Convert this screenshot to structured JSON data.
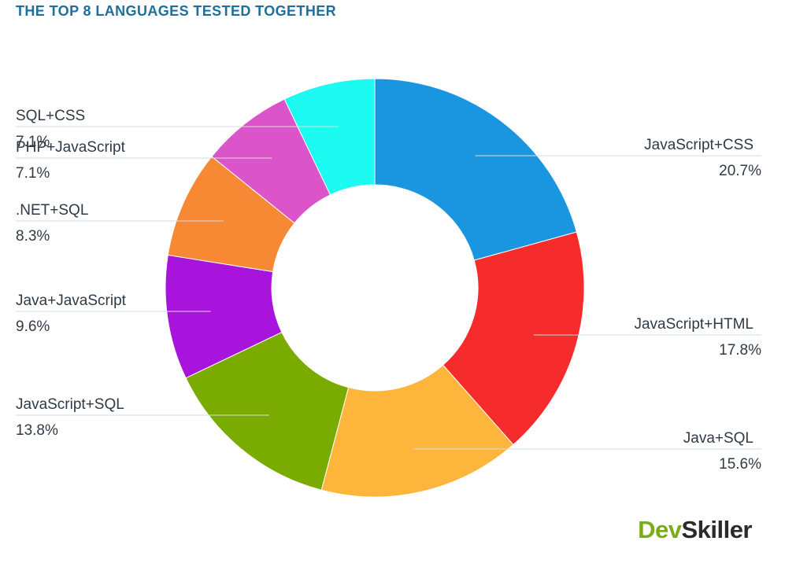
{
  "chart_data": {
    "type": "pie",
    "title": "THE TOP 8 LANGUAGES TESTED TOGETHER",
    "unit": "%",
    "slices": [
      {
        "label": "JavaScript+CSS",
        "value": 20.7,
        "value_label": "20.7%",
        "color": "#1a96e0"
      },
      {
        "label": "JavaScript+HTML",
        "value": 17.8,
        "value_label": "17.8%",
        "color": "#f62b2c"
      },
      {
        "label": "Java+SQL",
        "value": 15.6,
        "value_label": "15.6%",
        "color": "#fdb53b"
      },
      {
        "label": "JavaScript+SQL",
        "value": 13.8,
        "value_label": "13.8%",
        "color": "#7aab00"
      },
      {
        "label": "Java+JavaScript",
        "value": 9.6,
        "value_label": "9.6%",
        "color": "#a914dd"
      },
      {
        "label": ".NET+SQL",
        "value": 8.3,
        "value_label": "8.3%",
        "color": "#f88934"
      },
      {
        "label": "PHP+JavaScript",
        "value": 7.1,
        "value_label": "7.1%",
        "color": "#dc54c9"
      },
      {
        "label": "SQL+CSS",
        "value": 7.1,
        "value_label": "7.1%",
        "color": "#1cfaf1"
      }
    ],
    "legend": "none",
    "labels": "outside with leader lines",
    "donut": true
  },
  "brand": {
    "part1": "Dev",
    "part2": "Skiller"
  }
}
